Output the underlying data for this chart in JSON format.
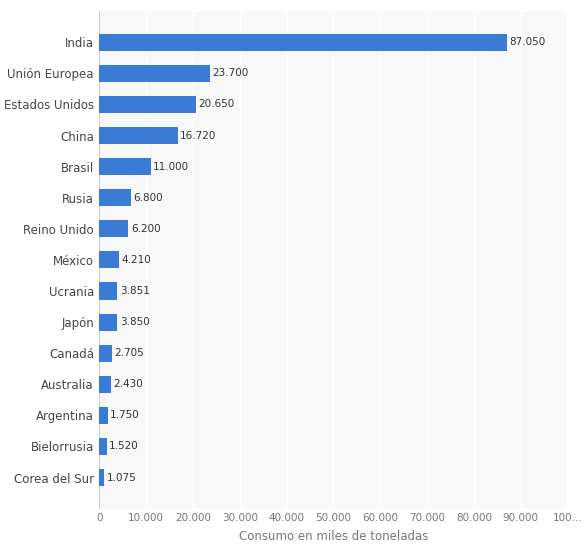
{
  "categories": [
    "Corea del Sur",
    "Bielorrusia",
    "Argentina",
    "Australia",
    "Canadá",
    "Japón",
    "Ucrania",
    "México",
    "Reino Unido",
    "Rusia",
    "Brasil",
    "China",
    "Estados Unidos",
    "Unión Europea",
    "India"
  ],
  "values": [
    1075,
    1520,
    1750,
    2430,
    2705,
    3850,
    3851,
    4210,
    6200,
    6800,
    11000,
    16720,
    20650,
    23700,
    87050
  ],
  "labels": [
    "1.075",
    "1.520",
    "1.750",
    "2.430",
    "2.705",
    "3.850",
    "3.851",
    "4.210",
    "6.200",
    "6.800",
    "11.000",
    "16.720",
    "20.650",
    "23.700",
    "87.050"
  ],
  "bar_color": "#3a7bd5",
  "background_color": "#ffffff",
  "plot_bg_color": "#f8f8f8",
  "xlabel": "Consumo en miles de toneladas",
  "xlim": [
    0,
    100000
  ],
  "tick_values": [
    0,
    10000,
    20000,
    30000,
    40000,
    50000,
    60000,
    70000,
    80000,
    90000,
    100000
  ],
  "tick_labels": [
    "0",
    "10.000",
    "20.000",
    "30.000",
    "40.000",
    "50.000",
    "60.000",
    "70.000",
    "80.000",
    "90.000",
    "100..."
  ],
  "label_fontsize": 7.5,
  "xlabel_fontsize": 8.5,
  "category_fontsize": 8.5,
  "tick_fontsize": 7.5,
  "bar_height": 0.55
}
